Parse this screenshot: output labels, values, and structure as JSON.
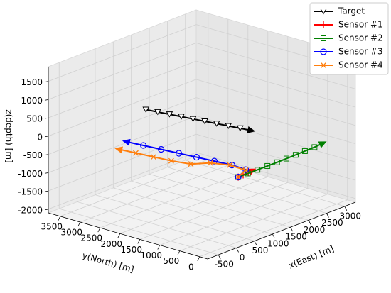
{
  "chart_data": {
    "type": "line3d",
    "xlabel": "x(East) [m]",
    "ylabel": "y(North) [m]",
    "zlabel": "z(depth) [m]",
    "xlim": [
      -800,
      3300
    ],
    "ylim": [
      -200,
      3800
    ],
    "zlim": [
      -2100,
      1900
    ],
    "xticks": [
      -500,
      0,
      500,
      1000,
      1500,
      2000,
      2500,
      3000
    ],
    "yticks": [
      0,
      500,
      1000,
      1500,
      2000,
      2500,
      3000,
      3500
    ],
    "zticks": [
      -2000,
      -1500,
      -1000,
      -500,
      0,
      500,
      1000,
      1500
    ],
    "grid": true,
    "legend": "upper right",
    "series": [
      {
        "name": "Target",
        "color": "#000000",
        "marker": "triangle-down",
        "x": [
          250,
          294,
          339,
          383,
          428,
          472,
          517,
          561,
          606,
          650
        ],
        "y": [
          2300,
          2044,
          1789,
          1533,
          1278,
          1022,
          767,
          511,
          256,
          0
        ],
        "z": [
          800,
          800,
          800,
          800,
          800,
          800,
          800,
          800,
          800,
          800
        ]
      },
      {
        "name": "Sensor #1",
        "color": "#ff0000",
        "marker": "plus",
        "x": [
          530,
          650,
          780,
          900
        ],
        "y": [
          235,
          220,
          210,
          200
        ],
        "z": [
          -500,
          -480,
          -460,
          -440
        ]
      },
      {
        "name": "Sensor #2",
        "color": "#008000",
        "marker": "square",
        "x": [
          530,
          780,
          1030,
          1290,
          1540,
          1790,
          2040,
          2290,
          2550,
          2800
        ],
        "y": [
          235,
          220,
          205,
          190,
          175,
          165,
          160,
          155,
          150,
          150
        ],
        "z": [
          -500,
          -490,
          -480,
          -470,
          -460,
          -450,
          -440,
          -430,
          -420,
          -400
        ]
      },
      {
        "name": "Sensor #3",
        "color": "#0000ff",
        "marker": "circle",
        "x": [
          530,
          700,
          650,
          600,
          550,
          500,
          450,
          400,
          350
        ],
        "y": [
          235,
          200,
          500,
          900,
          1300,
          1700,
          2100,
          2500,
          2900
        ],
        "z": [
          -500,
          -350,
          -300,
          -300,
          -300,
          -300,
          -300,
          -300,
          -300
        ]
      },
      {
        "name": "Sensor #4",
        "color": "#ff7f0e",
        "marker": "x",
        "x": [
          530,
          750,
          700,
          600,
          500,
          400,
          350,
          300,
          250
        ],
        "y": [
          235,
          250,
          600,
          1000,
          1400,
          1800,
          2200,
          2600,
          3000
        ],
        "z": [
          -500,
          -400,
          -350,
          -380,
          -500,
          -500,
          -500,
          -500,
          -500
        ]
      }
    ]
  }
}
